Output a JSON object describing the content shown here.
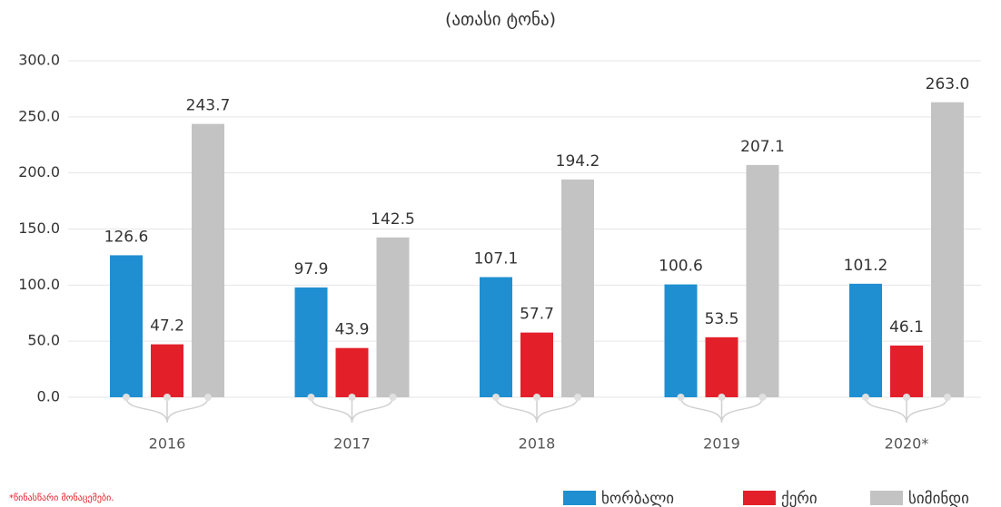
{
  "chart_data": {
    "type": "bar",
    "title": "(ათასი ტონა)",
    "categories": [
      "2016",
      "2017",
      "2018",
      "2019",
      "2020*"
    ],
    "series": [
      {
        "name": "ხორბალი",
        "color": "#1f8fd1",
        "values": [
          126.6,
          97.9,
          107.1,
          100.6,
          101.2
        ],
        "value_labels": [
          "126.6",
          "97.9",
          "107.1",
          "100.6",
          "101.2"
        ]
      },
      {
        "name": "ქერი",
        "color": "#e3202a",
        "values": [
          47.2,
          43.9,
          57.7,
          53.5,
          46.1
        ],
        "value_labels": [
          "47.2",
          "43.9",
          "57.7",
          "53.5",
          "46.1"
        ]
      },
      {
        "name": "სიმინდი",
        "color": "#c3c3c3",
        "values": [
          243.7,
          142.5,
          194.2,
          207.1,
          263.0
        ],
        "value_labels": [
          "243.7",
          "142.5",
          "194.2",
          "207.1",
          "263.0"
        ]
      }
    ],
    "ylim": [
      0,
      300
    ],
    "yticks": [
      {
        "value": 0,
        "label": "0.0"
      },
      {
        "value": 50,
        "label": "50.0"
      },
      {
        "value": 100,
        "label": "100.0"
      },
      {
        "value": 150,
        "label": "150.0"
      },
      {
        "value": 200,
        "label": "200.0"
      },
      {
        "value": 250,
        "label": "250.0"
      },
      {
        "value": 300,
        "label": "300.0"
      }
    ],
    "grid": true,
    "footnote": "*წინასწარი მონაცემები."
  }
}
